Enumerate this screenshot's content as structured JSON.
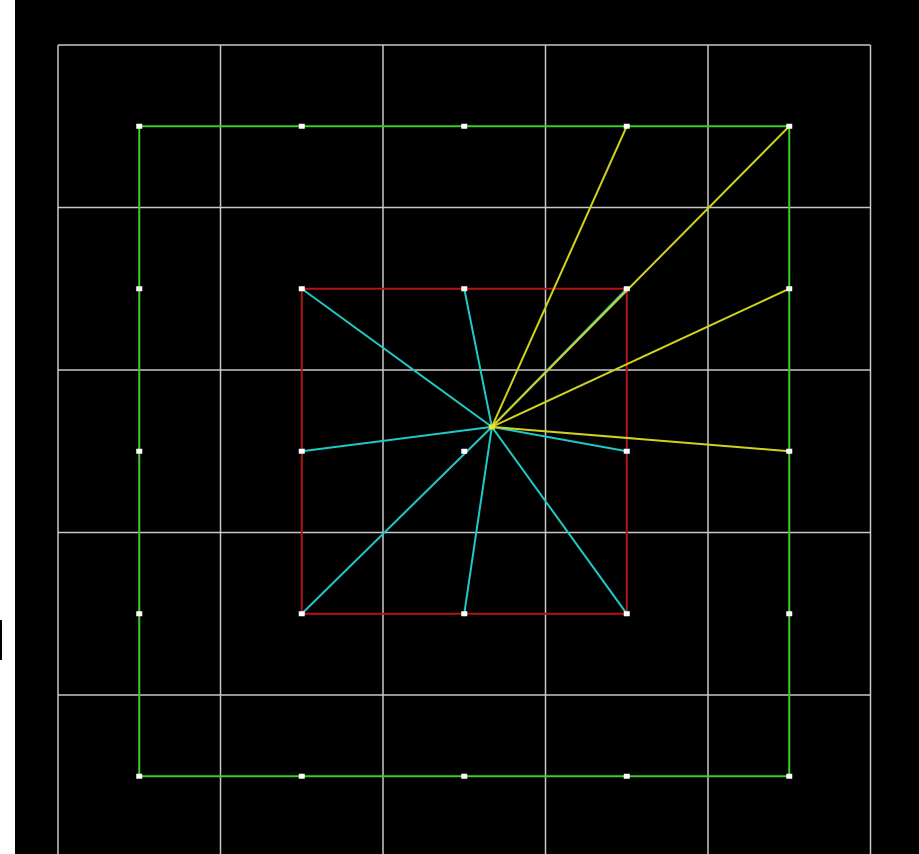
{
  "colors": {
    "background": "#000000",
    "grid": "#c8c8c8",
    "outer_square": "#3ccc28",
    "inner_square": "#b01414",
    "inner_rays": "#20c8c8",
    "outer_rays": "#d2d21e",
    "vertex": "#ffffff",
    "center": "#e8e832"
  },
  "diagram": {
    "grid": {
      "cells": 5
    },
    "outer_points": [
      [
        0.5,
        0.5
      ],
      [
        1.5,
        0.5
      ],
      [
        2.5,
        0.5
      ],
      [
        3.5,
        0.5
      ],
      [
        4.5,
        0.5
      ],
      [
        4.5,
        1.5
      ],
      [
        4.5,
        2.5
      ],
      [
        4.5,
        3.5
      ],
      [
        4.5,
        4.5
      ],
      [
        3.5,
        4.5
      ],
      [
        2.5,
        4.5
      ],
      [
        1.5,
        4.5
      ],
      [
        0.5,
        4.5
      ],
      [
        0.5,
        3.5
      ],
      [
        0.5,
        2.5
      ],
      [
        0.5,
        1.5
      ]
    ],
    "inner_points": [
      [
        1.5,
        1.5
      ],
      [
        2.5,
        1.5
      ],
      [
        3.5,
        1.5
      ],
      [
        3.5,
        2.5
      ],
      [
        3.5,
        3.5
      ],
      [
        2.5,
        3.5
      ],
      [
        1.5,
        3.5
      ],
      [
        1.5,
        2.5
      ],
      [
        2.5,
        2.5
      ]
    ],
    "center": [
      2.67,
      2.35
    ],
    "inner_rays_to": [
      [
        1.5,
        1.5
      ],
      [
        2.5,
        1.5
      ],
      [
        3.5,
        1.5
      ],
      [
        3.5,
        2.5
      ],
      [
        3.5,
        3.5
      ],
      [
        2.5,
        3.5
      ],
      [
        1.5,
        3.5
      ],
      [
        1.5,
        2.5
      ]
    ],
    "outer_rays_to": [
      [
        3.5,
        0.5
      ],
      [
        4.5,
        0.5
      ],
      [
        4.5,
        1.5
      ],
      [
        4.5,
        2.5
      ]
    ]
  }
}
